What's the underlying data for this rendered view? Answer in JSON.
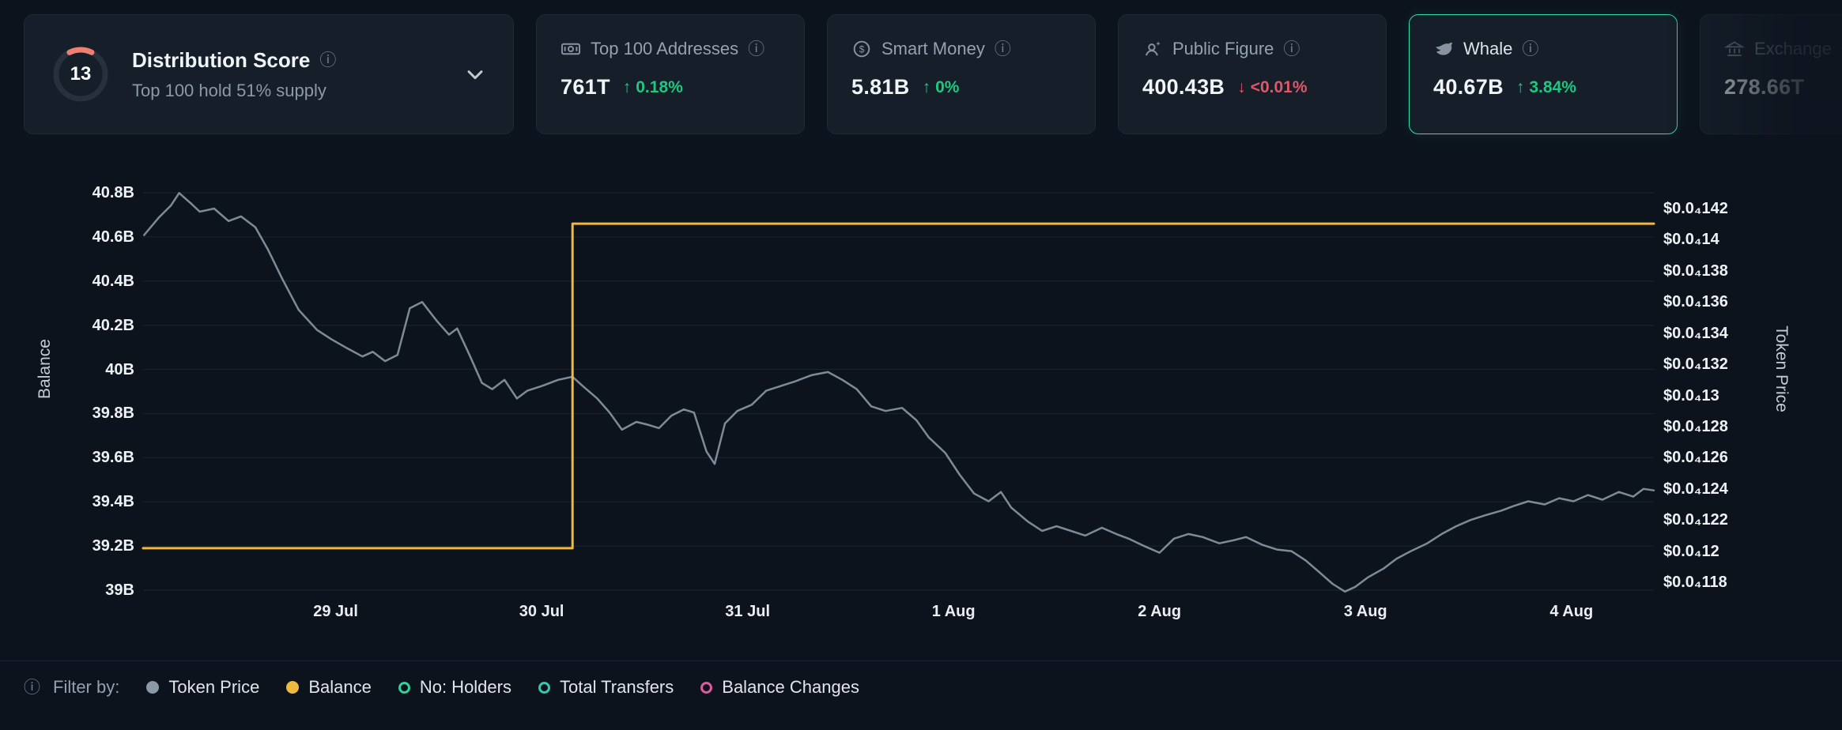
{
  "icons": {
    "info": "ⓘ",
    "arrow_up": "↑",
    "arrow_down": "↓"
  },
  "colors": {
    "page_bg": "#0d131d",
    "card_bg": "#151e29",
    "accent_green": "#1ec87e",
    "accent_red": "#dd5868",
    "selected_border": "#2fdfa6",
    "balance_line": "#edb93e",
    "price_line": "#8b98a6",
    "holders_color": "#2bd49b",
    "transfers_color": "#35c8ad",
    "balance_changes_color": "#df5a9c",
    "gauge_arc": "#ee8072",
    "gauge_track": "#27313e"
  },
  "cards": {
    "distribution": {
      "score": "13",
      "title": "Distribution Score",
      "subtitle": "Top 100 hold 51% supply"
    },
    "stats": [
      {
        "label": "Top 100 Addresses",
        "value": "761T",
        "change": "0.18%",
        "direction": "up"
      },
      {
        "label": "Smart Money",
        "value": "5.81B",
        "change": "0%",
        "direction": "up"
      },
      {
        "label": "Public Figure",
        "value": "400.43B",
        "change": "<0.01%",
        "direction": "down"
      },
      {
        "label": "Whale",
        "value": "40.67B",
        "change": "3.84%",
        "direction": "up",
        "selected": true
      },
      {
        "label": "Exchange",
        "value": "278.66T"
      }
    ]
  },
  "chart_data": {
    "type": "line",
    "x_axis": {
      "tick_labels": [
        "29 Jul",
        "30 Jul",
        "31 Jul",
        "1 Aug",
        "2 Aug",
        "3 Aug",
        "4 Aug"
      ],
      "tick_days": [
        1,
        2,
        3,
        4,
        5,
        6,
        7
      ]
    },
    "left_axis": {
      "title": "Balance",
      "tick_labels": [
        "40.8B",
        "40.6B",
        "40.4B",
        "40.2B",
        "40B",
        "39.8B",
        "39.6B",
        "39.4B",
        "39.2B",
        "39B"
      ],
      "tick_values": [
        40.8,
        40.6,
        40.4,
        40.2,
        40.0,
        39.8,
        39.6,
        39.4,
        39.2,
        39.0
      ],
      "range": [
        39.0,
        40.8
      ]
    },
    "right_axis": {
      "title": "Token Price",
      "tick_labels": [
        "$0.0₄142",
        "$0.0₄14",
        "$0.0₄138",
        "$0.0₄136",
        "$0.0₄134",
        "$0.0₄132",
        "$0.0₄13",
        "$0.0₄128",
        "$0.0₄126",
        "$0.0₄124",
        "$0.0₄122",
        "$0.0₄12",
        "$0.0₄118"
      ],
      "tick_values": [
        142,
        140,
        138,
        136,
        134,
        132,
        130,
        128,
        126,
        124,
        122,
        120,
        118
      ],
      "unit": "×1e-7 USD",
      "range": [
        118,
        142
      ]
    },
    "grid": "horizontal-only",
    "legend_position": "bottom",
    "series": [
      {
        "name": "Token Price",
        "axis": "right",
        "color_key": "price_line",
        "width": 2.5,
        "points": [
          [
            0.07,
            140.3
          ],
          [
            0.14,
            141.4
          ],
          [
            0.2,
            142.2
          ],
          [
            0.24,
            143.0
          ],
          [
            0.3,
            142.3
          ],
          [
            0.34,
            141.8
          ],
          [
            0.41,
            142.0
          ],
          [
            0.48,
            141.2
          ],
          [
            0.54,
            141.5
          ],
          [
            0.61,
            140.8
          ],
          [
            0.67,
            139.4
          ],
          [
            0.74,
            137.5
          ],
          [
            0.82,
            135.5
          ],
          [
            0.91,
            134.2
          ],
          [
            0.98,
            133.6
          ],
          [
            1.06,
            133.0
          ],
          [
            1.13,
            132.5
          ],
          [
            1.18,
            132.8
          ],
          [
            1.24,
            132.2
          ],
          [
            1.3,
            132.6
          ],
          [
            1.36,
            135.6
          ],
          [
            1.42,
            136.0
          ],
          [
            1.49,
            134.8
          ],
          [
            1.55,
            133.9
          ],
          [
            1.59,
            134.3
          ],
          [
            1.65,
            132.6
          ],
          [
            1.71,
            130.8
          ],
          [
            1.76,
            130.4
          ],
          [
            1.82,
            131.0
          ],
          [
            1.88,
            129.8
          ],
          [
            1.93,
            130.3
          ],
          [
            2.0,
            130.6
          ],
          [
            2.08,
            131.0
          ],
          [
            2.15,
            131.2
          ],
          [
            2.2,
            130.6
          ],
          [
            2.27,
            129.8
          ],
          [
            2.33,
            128.9
          ],
          [
            2.39,
            127.8
          ],
          [
            2.46,
            128.3
          ],
          [
            2.52,
            128.1
          ],
          [
            2.57,
            127.9
          ],
          [
            2.63,
            128.7
          ],
          [
            2.69,
            129.1
          ],
          [
            2.74,
            128.9
          ],
          [
            2.8,
            126.4
          ],
          [
            2.84,
            125.6
          ],
          [
            2.89,
            128.2
          ],
          [
            2.95,
            129.0
          ],
          [
            3.02,
            129.4
          ],
          [
            3.09,
            130.3
          ],
          [
            3.16,
            130.6
          ],
          [
            3.23,
            130.9
          ],
          [
            3.31,
            131.3
          ],
          [
            3.39,
            131.5
          ],
          [
            3.46,
            131.0
          ],
          [
            3.53,
            130.4
          ],
          [
            3.6,
            129.3
          ],
          [
            3.67,
            129.0
          ],
          [
            3.75,
            129.2
          ],
          [
            3.82,
            128.4
          ],
          [
            3.88,
            127.3
          ],
          [
            3.96,
            126.3
          ],
          [
            4.03,
            124.9
          ],
          [
            4.1,
            123.7
          ],
          [
            4.17,
            123.2
          ],
          [
            4.23,
            123.8
          ],
          [
            4.28,
            122.8
          ],
          [
            4.36,
            121.9
          ],
          [
            4.43,
            121.3
          ],
          [
            4.5,
            121.6
          ],
          [
            4.57,
            121.3
          ],
          [
            4.64,
            121.0
          ],
          [
            4.72,
            121.5
          ],
          [
            4.79,
            121.1
          ],
          [
            4.85,
            120.8
          ],
          [
            4.93,
            120.3
          ],
          [
            5.0,
            119.9
          ],
          [
            5.07,
            120.8
          ],
          [
            5.14,
            121.1
          ],
          [
            5.21,
            120.9
          ],
          [
            5.29,
            120.5
          ],
          [
            5.36,
            120.7
          ],
          [
            5.42,
            120.9
          ],
          [
            5.5,
            120.4
          ],
          [
            5.57,
            120.1
          ],
          [
            5.64,
            120.0
          ],
          [
            5.71,
            119.4
          ],
          [
            5.78,
            118.6
          ],
          [
            5.84,
            117.9
          ],
          [
            5.9,
            117.4
          ],
          [
            5.95,
            117.7
          ],
          [
            6.01,
            118.3
          ],
          [
            6.09,
            118.9
          ],
          [
            6.15,
            119.5
          ],
          [
            6.22,
            120.0
          ],
          [
            6.3,
            120.5
          ],
          [
            6.37,
            121.1
          ],
          [
            6.44,
            121.6
          ],
          [
            6.51,
            122.0
          ],
          [
            6.58,
            122.3
          ],
          [
            6.66,
            122.6
          ],
          [
            6.72,
            122.9
          ],
          [
            6.79,
            123.2
          ],
          [
            6.87,
            123.0
          ],
          [
            6.94,
            123.4
          ],
          [
            7.01,
            123.2
          ],
          [
            7.08,
            123.6
          ],
          [
            7.15,
            123.3
          ],
          [
            7.23,
            123.8
          ],
          [
            7.3,
            123.5
          ],
          [
            7.35,
            124.0
          ],
          [
            7.4,
            123.9
          ]
        ]
      },
      {
        "name": "Balance",
        "axis": "left",
        "color_key": "balance_line",
        "width": 3,
        "points": [
          [
            0.065,
            39.19
          ],
          [
            2.15,
            39.19
          ],
          [
            2.15,
            40.66
          ],
          [
            7.4,
            40.66
          ]
        ]
      }
    ]
  },
  "filter": {
    "label": "Filter by:",
    "items": [
      {
        "label": "Token Price",
        "style": "filled",
        "color_key": "price_line"
      },
      {
        "label": "Balance",
        "style": "filled",
        "color_key": "balance_line"
      },
      {
        "label": "No: Holders",
        "style": "ring",
        "color_key": "holders_color"
      },
      {
        "label": "Total Transfers",
        "style": "ring",
        "color_key": "transfers_color"
      },
      {
        "label": "Balance Changes",
        "style": "ring",
        "color_key": "balance_changes_color"
      }
    ]
  }
}
